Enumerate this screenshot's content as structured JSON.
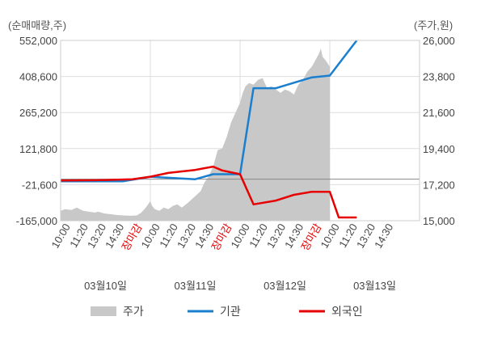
{
  "chart_data": {
    "type": "line",
    "left_axis_title": "(순매매량,주)",
    "right_axis_title": "(주가,원)",
    "left_ticks": [
      "552,000",
      "408,600",
      "265,200",
      "121,800",
      "-21,600",
      "-165,000"
    ],
    "right_ticks": [
      "26,000",
      "23,800",
      "21,600",
      "19,400",
      "17,200",
      "15,000"
    ],
    "ylim_left": [
      -165000,
      552000
    ],
    "ylim_right": [
      15000,
      26000
    ],
    "x_tick_labels": [
      "10:00",
      "11:20",
      "13:20",
      "14:30",
      "장마감",
      "10:00",
      "11:20",
      "13:20",
      "14:30",
      "장마감",
      "10:00",
      "11:20",
      "13:20",
      "14:30",
      "장마감",
      "10:00",
      "11:20",
      "13:20",
      "14:30"
    ],
    "close_label": "장마감",
    "day_labels": [
      "03월10일",
      "03월11일",
      "03월12일",
      "03월13일"
    ],
    "colors": {
      "price": "#c8c8c8",
      "institution": "#1a7fce",
      "foreign": "#e60000",
      "grid": "#dddddd",
      "zero": "#888888"
    },
    "series": [
      {
        "name": "주가",
        "type": "area",
        "axis": "right",
        "x": [
          0,
          0.05,
          0.12,
          0.18,
          0.25,
          0.32,
          0.38,
          0.42,
          0.48,
          0.52,
          0.58,
          0.62,
          0.7,
          0.78,
          0.85,
          0.9,
          0.95,
          1.0,
          1.02,
          1.05,
          1.1,
          1.15,
          1.2,
          1.25,
          1.3,
          1.35,
          1.42,
          1.5,
          1.56,
          1.6,
          1.65,
          1.7,
          1.75,
          1.8,
          1.85,
          1.9,
          1.95,
          2.0,
          2.03,
          2.06,
          2.1,
          2.15,
          2.2,
          2.25,
          2.3,
          2.35,
          2.4,
          2.45,
          2.5,
          2.55,
          2.6,
          2.65,
          2.7,
          2.75,
          2.8,
          2.85,
          2.88,
          2.9,
          2.92,
          2.95,
          3.0
        ],
        "values": [
          15600,
          15700,
          15650,
          15800,
          15600,
          15550,
          15500,
          15550,
          15450,
          15420,
          15380,
          15350,
          15320,
          15300,
          15320,
          15500,
          15800,
          16200,
          15900,
          15700,
          15600,
          15800,
          15700,
          15900,
          16000,
          15800,
          16100,
          16500,
          16800,
          17300,
          17700,
          18300,
          19300,
          19400,
          20100,
          21000,
          21600,
          22200,
          22800,
          23200,
          23400,
          23300,
          23600,
          23700,
          23100,
          23200,
          23000,
          22800,
          23000,
          22900,
          22700,
          23300,
          23600,
          24100,
          24400,
          24900,
          25200,
          25500,
          25000,
          24800,
          24400
        ]
      },
      {
        "name": "기관",
        "type": "line",
        "axis": "left",
        "x": [
          0,
          0.7,
          1,
          1.5,
          1.7,
          2,
          2.15,
          2.4,
          2.8,
          3,
          3.3
        ],
        "values": [
          -8000,
          -8000,
          10000,
          0,
          20000,
          20000,
          362000,
          362000,
          405000,
          412000,
          552000
        ]
      },
      {
        "name": "외국인",
        "type": "line",
        "axis": "left",
        "x": [
          0,
          0.4,
          0.8,
          1,
          1.2,
          1.5,
          1.7,
          1.8,
          2,
          2.15,
          2.4,
          2.6,
          2.8,
          3,
          3.1,
          3.3
        ],
        "values": [
          -5000,
          -4000,
          0,
          10000,
          25000,
          37000,
          50000,
          35000,
          20000,
          -100000,
          -85000,
          -62000,
          -50000,
          -50000,
          -152000,
          -152000
        ]
      }
    ],
    "legend": [
      {
        "name": "주가",
        "marker": "area"
      },
      {
        "name": "기관",
        "marker": "line"
      },
      {
        "name": "외국인",
        "marker": "line"
      }
    ],
    "legend_position": "bottom",
    "grid": true
  }
}
